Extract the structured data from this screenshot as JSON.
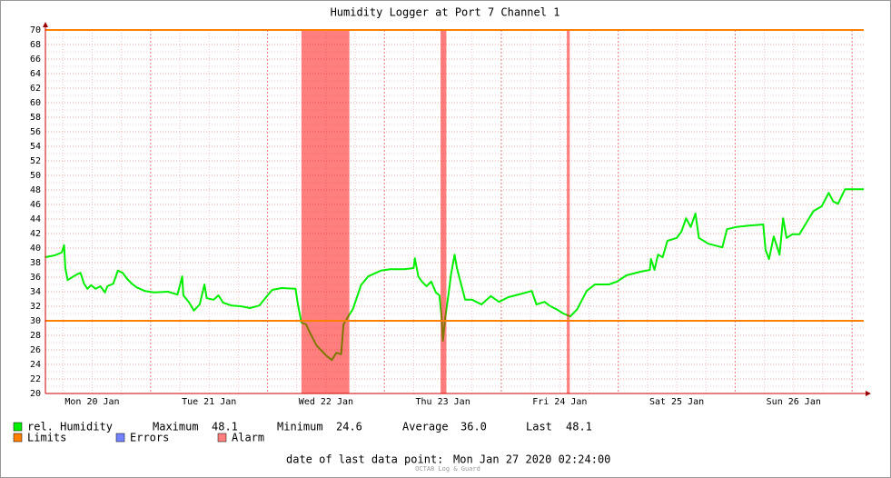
{
  "chart_data": {
    "type": "line",
    "title": "Humidity Logger at Port 7 Channel 1",
    "x": [
      20.1,
      20.18,
      20.24,
      20.26,
      20.27,
      20.29,
      20.33,
      20.37,
      20.4,
      20.43,
      20.46,
      20.49,
      20.53,
      20.57,
      20.61,
      20.63,
      20.68,
      20.72,
      20.76,
      20.8,
      20.84,
      20.88,
      20.95,
      21.03,
      21.15,
      21.23,
      21.27,
      21.28,
      21.33,
      21.37,
      21.42,
      21.46,
      21.48,
      21.54,
      21.58,
      21.62,
      21.69,
      21.77,
      21.85,
      21.93,
      22.0,
      22.04,
      22.12,
      22.24,
      22.26,
      22.29,
      22.33,
      22.37,
      22.42,
      22.47,
      22.51,
      22.55,
      22.59,
      22.63,
      22.65,
      22.69,
      22.73,
      22.77,
      22.8,
      22.86,
      22.9,
      22.97,
      23.05,
      23.17,
      23.25,
      23.26,
      23.29,
      23.32,
      23.36,
      23.4,
      23.44,
      23.47,
      23.49,
      23.5,
      23.52,
      23.55,
      23.57,
      23.6,
      23.62,
      23.65,
      23.69,
      23.75,
      23.83,
      23.91,
      23.98,
      24.06,
      24.18,
      24.26,
      24.3,
      24.37,
      24.41,
      24.47,
      24.53,
      24.59,
      24.65,
      24.73,
      24.8,
      24.92,
      24.99,
      25.07,
      25.19,
      25.27,
      25.28,
      25.31,
      25.34,
      25.38,
      25.42,
      25.5,
      25.54,
      25.58,
      25.62,
      25.66,
      25.69,
      25.77,
      25.89,
      25.93,
      26.01,
      26.12,
      26.24,
      26.26,
      26.29,
      26.33,
      26.38,
      26.41,
      26.44,
      26.49,
      26.55,
      26.61,
      26.67,
      26.74,
      26.8,
      26.84,
      26.88,
      26.94,
      27.02,
      27.1
    ],
    "series": [
      {
        "name": "rel. Humidity",
        "color": "#00ee00",
        "values": [
          38.75,
          39,
          39.4,
          40.4,
          37.25,
          35.6,
          36,
          36.4,
          36.6,
          35.1,
          34.4,
          34.9,
          34.4,
          34.75,
          33.9,
          34.75,
          35.1,
          36.9,
          36.6,
          35.75,
          35.1,
          34.6,
          34.1,
          33.9,
          34,
          33.6,
          36.1,
          33.5,
          32.5,
          31.4,
          32.25,
          35,
          33.1,
          32.9,
          33.5,
          32.5,
          32.1,
          32,
          31.75,
          32.1,
          33.5,
          34.25,
          34.5,
          34.4,
          32.25,
          29.75,
          29.5,
          28.1,
          26.6,
          25.75,
          25.1,
          24.6,
          25.6,
          25.4,
          29.5,
          30.6,
          31.6,
          33.5,
          34.9,
          36.1,
          36.4,
          36.9,
          37.1,
          37.1,
          37.25,
          38.6,
          36.1,
          35.4,
          34.75,
          35.4,
          33.9,
          33.5,
          30.4,
          27.25,
          30.4,
          33.9,
          36.4,
          39.1,
          37.25,
          35.4,
          32.9,
          32.9,
          32.25,
          33.4,
          32.6,
          33.25,
          33.75,
          34.1,
          32.25,
          32.6,
          32.1,
          31.6,
          31,
          30.6,
          31.6,
          34.1,
          35,
          35,
          35.4,
          36.25,
          36.75,
          37,
          38.5,
          37,
          39.1,
          38.75,
          41,
          41.4,
          42.25,
          44.1,
          42.9,
          44.75,
          41.4,
          40.6,
          40.1,
          42.6,
          42.9,
          43.1,
          43.25,
          39.75,
          38.5,
          41.6,
          39.1,
          44.1,
          41.4,
          41.9,
          41.9,
          43.5,
          45.1,
          45.75,
          47.6,
          46.4,
          46.1,
          48.1,
          48.1,
          48.1
        ]
      }
    ],
    "xlim": [
      20.1,
      27.1
    ],
    "xticks": [
      {
        "value": 20.5,
        "label": "Mon 20 Jan"
      },
      {
        "value": 21.5,
        "label": "Tue 21 Jan"
      },
      {
        "value": 22.5,
        "label": "Wed 22 Jan"
      },
      {
        "value": 23.5,
        "label": "Thu 23 Jan"
      },
      {
        "value": 24.5,
        "label": "Fri 24 Jan"
      },
      {
        "value": 25.5,
        "label": "Sat 25 Jan"
      },
      {
        "value": 26.5,
        "label": "Sun 26 Jan"
      }
    ],
    "ylim": [
      20,
      70
    ],
    "yticks": [
      20,
      22,
      24,
      26,
      28,
      30,
      32,
      34,
      36,
      38,
      40,
      42,
      44,
      46,
      48,
      50,
      52,
      54,
      56,
      58,
      60,
      62,
      64,
      66,
      68,
      70
    ],
    "grid": true,
    "limits": {
      "name": "Limits",
      "color": "#ff7f00",
      "values": [
        30,
        70
      ]
    },
    "errors": {
      "name": "Errors",
      "color": "#7383ff"
    },
    "alarms": {
      "name": "Alarm",
      "color": "#ff0000",
      "ranges": [
        [
          22.29,
          22.7
        ],
        [
          23.48,
          23.53
        ],
        [
          24.56,
          24.585
        ]
      ]
    },
    "stats": [
      {
        "name": "Maximum",
        "value": 48.1
      },
      {
        "name": "Minimum",
        "value": 24.6
      },
      {
        "name": "Average",
        "value": 36.0,
        "value_label": "36.0"
      },
      {
        "name": "Last",
        "value": 48.1
      }
    ],
    "footer": {
      "label": "date of last data point:",
      "value": "Mon Jan 27 2020 02:24:00"
    },
    "credit": "OCTA8 Log & Guard"
  }
}
